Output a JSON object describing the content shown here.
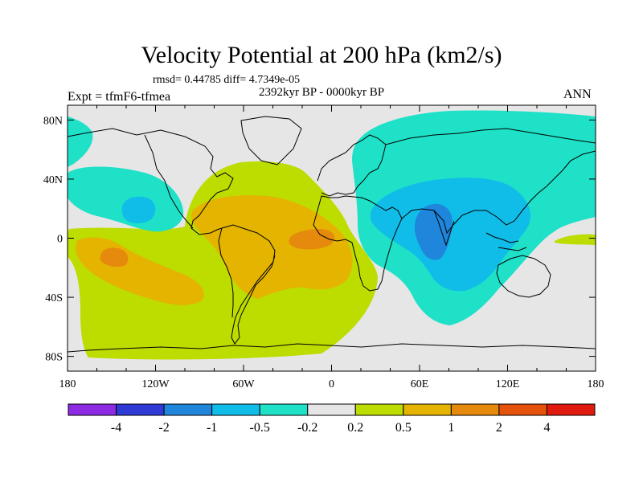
{
  "title": "Velocity Potential at 200 hPa (km2/s)",
  "stats": "rmsd= 0.44785  diff= 4.7349e-05",
  "experiment": "Expt = tfmF6-tfmea",
  "period": "2392kyr BP - 0000kyr BP",
  "season": "ANN",
  "x_ticks": [
    "180",
    "120W",
    "60W",
    "0",
    "60E",
    "120E",
    "180"
  ],
  "y_ticks": [
    "80N",
    "40N",
    "0",
    "40S",
    "80S"
  ],
  "colorbar": {
    "labels": [
      "-4",
      "-2",
      "-1",
      "-0.5",
      "-0.2",
      "0.2",
      "0.5",
      "1",
      "2",
      "4"
    ],
    "colors": [
      "#8d2be2",
      "#2f3ad6",
      "#1f86dc",
      "#10bde8",
      "#1ee1c8",
      "#e6e6e6",
      "#bddc00",
      "#e4b400",
      "#e58a0c",
      "#e4520c",
      "#e11a10"
    ]
  },
  "field_colors": {
    "neutral": "#e6e6e6",
    "neg_05": "#1ee1c8",
    "neg_1": "#10bde8",
    "neg_2": "#1f86dc",
    "pos_02": "#bddc00",
    "pos_05": "#e4b400",
    "pos_1": "#e58a0c",
    "pos_2": "#e4520c"
  }
}
